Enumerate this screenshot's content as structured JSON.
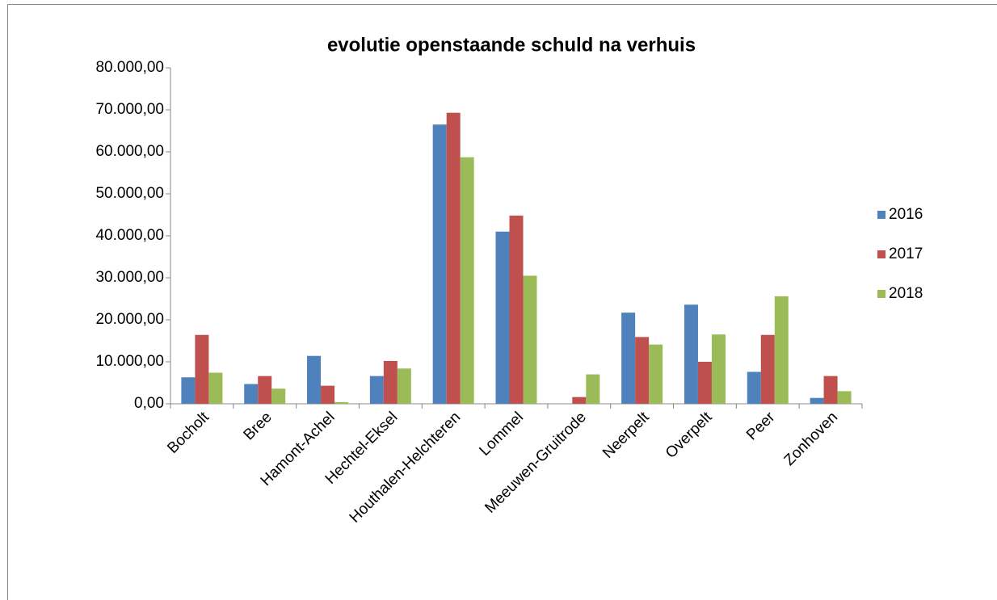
{
  "chart_data": {
    "type": "bar",
    "title": "evolutie openstaande schuld na verhuis",
    "categories": [
      "Bocholt",
      "Bree",
      "Hamont-Achel",
      "Hechtel-Eksel",
      "Houthalen-Helchteren",
      "Lommel",
      "Meeuwen-Gruitrode",
      "Neerpelt",
      "Overpelt",
      "Peer",
      "Zonhoven"
    ],
    "series": [
      {
        "name": "2016",
        "color": "#4f81bd",
        "values": [
          6300,
          4700,
          11400,
          6600,
          66500,
          41000,
          0,
          21700,
          23600,
          7600,
          1400
        ]
      },
      {
        "name": "2017",
        "color": "#c0504d",
        "values": [
          16400,
          6600,
          4300,
          10200,
          69300,
          44800,
          1600,
          15900,
          10000,
          16400,
          6600
        ]
      },
      {
        "name": "2018",
        "color": "#9bbb59",
        "values": [
          7400,
          3600,
          400,
          8400,
          58700,
          30500,
          7000,
          14100,
          16500,
          25600,
          3000
        ]
      }
    ],
    "ylim": [
      0,
      80000
    ],
    "yticks": [
      {
        "value": 0,
        "label": "0,00"
      },
      {
        "value": 10000,
        "label": "10.000,00"
      },
      {
        "value": 20000,
        "label": "20.000,00"
      },
      {
        "value": 30000,
        "label": "30.000,00"
      },
      {
        "value": 40000,
        "label": "40.000,00"
      },
      {
        "value": 50000,
        "label": "50.000,00"
      },
      {
        "value": 60000,
        "label": "60.000,00"
      },
      {
        "value": 70000,
        "label": "70.000,00"
      },
      {
        "value": 80000,
        "label": "80.000,00"
      }
    ],
    "grid": false,
    "legend": "right"
  }
}
